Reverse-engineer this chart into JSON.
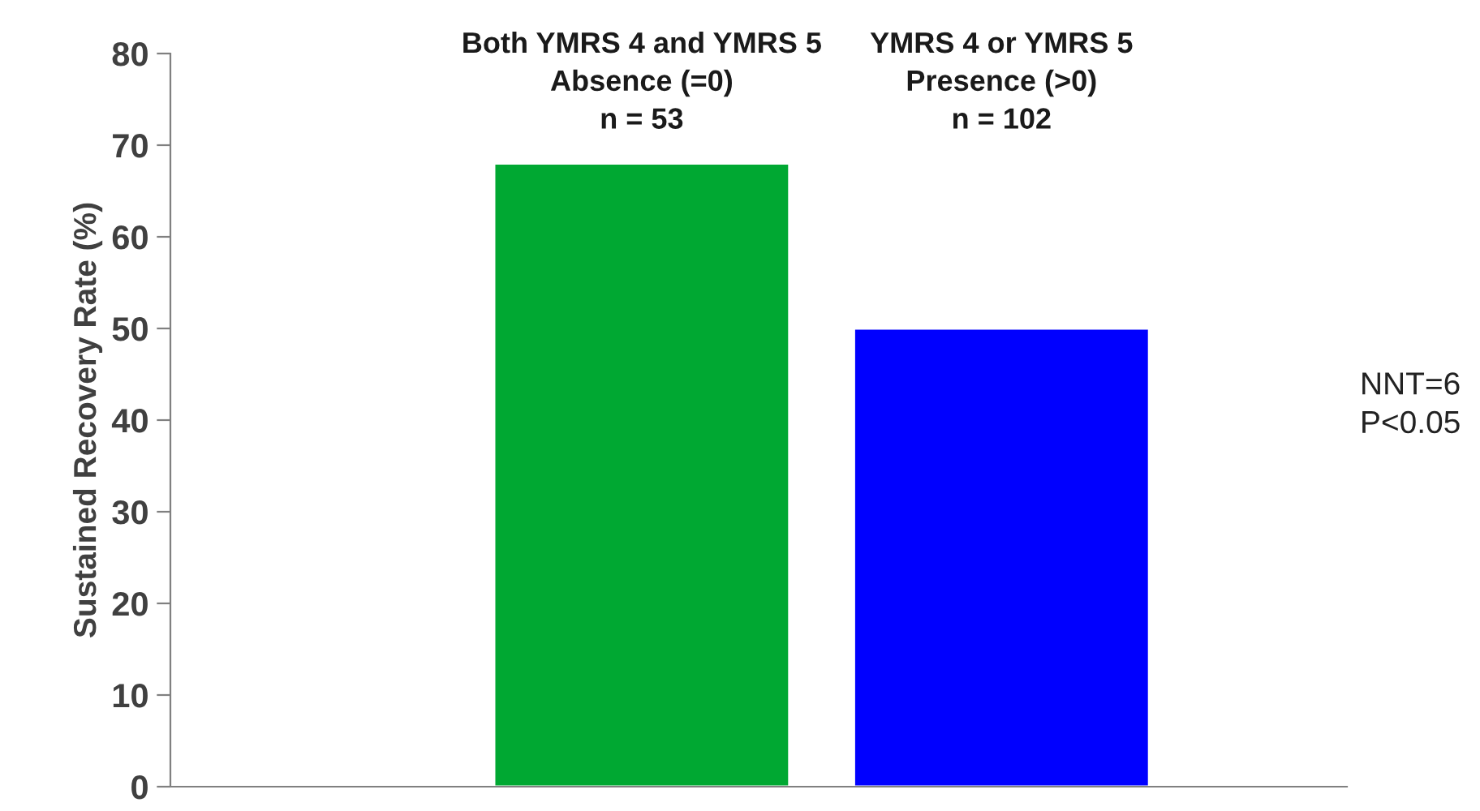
{
  "chart_data": {
    "type": "bar",
    "ylabel": "Sustained Recovery Rate (%)",
    "categories": [
      "Both YMRS 4 and YMRS 5\nAbsence (=0)\nn = 53",
      "YMRS 4 or YMRS 5\nPresence (>0)\nn = 102"
    ],
    "values": [
      68,
      50
    ],
    "colors": [
      "#00a832",
      "#0000ff"
    ],
    "ylim": [
      0,
      80
    ],
    "yticks": [
      0,
      10,
      20,
      30,
      40,
      50,
      60,
      70,
      80
    ],
    "annotations": [
      "NNT=6\nP<0.05"
    ],
    "grid": false,
    "legend": false
  }
}
